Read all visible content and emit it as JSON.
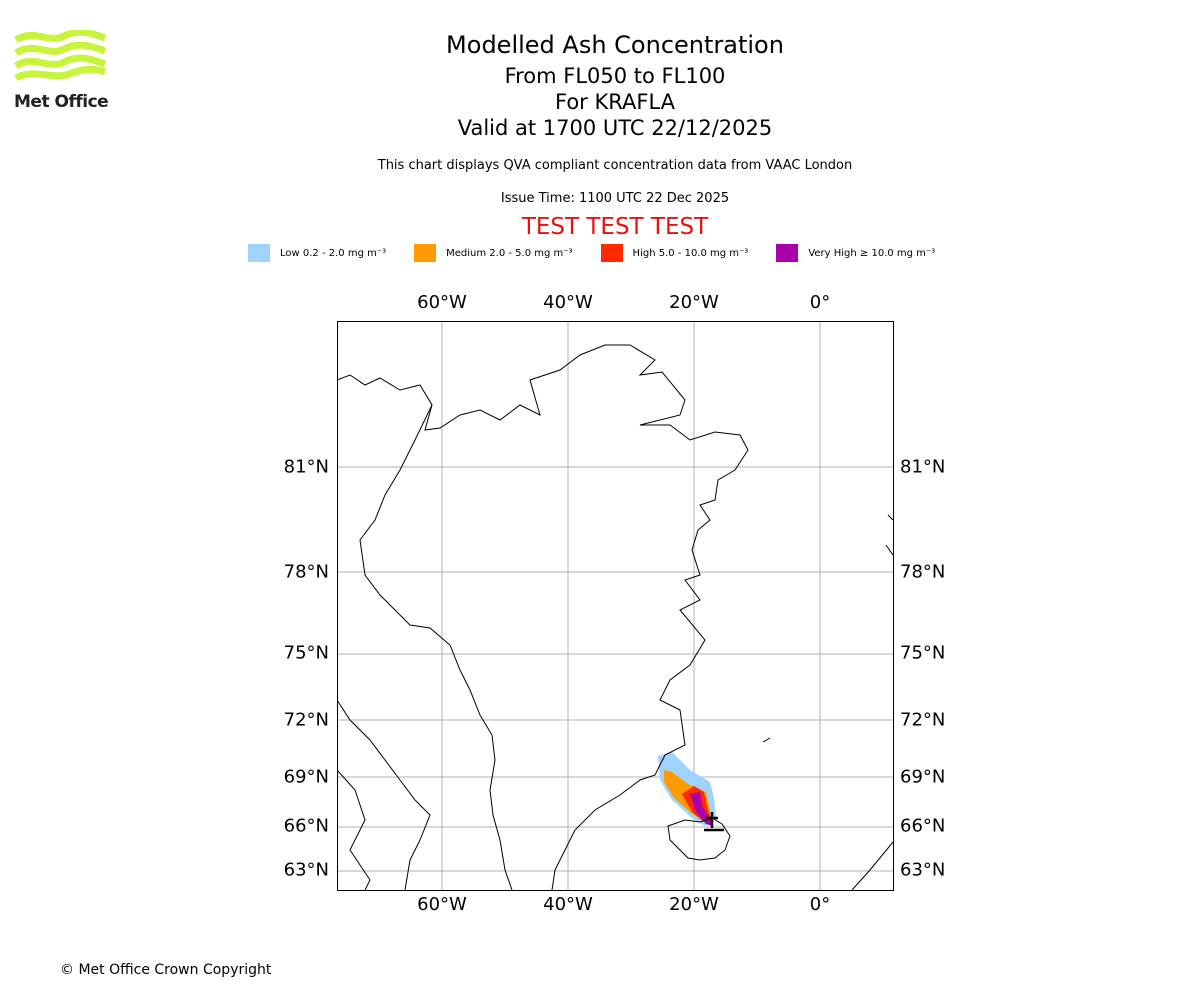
{
  "logo": {
    "text": "Met Office",
    "color": "#c8f53c"
  },
  "header": {
    "title": "Modelled Ash Concentration",
    "levels": "From FL050 to FL100",
    "volcano": "For KRAFLA",
    "valid": "Valid at 1700 UTC 22/12/2025",
    "note": "This chart displays QVA compliant concentration data from VAAC London",
    "issue": "Issue Time: 1100 UTC 22 Dec 2025",
    "test": "TEST TEST TEST"
  },
  "legend": [
    {
      "label": "Low 0.2 - 2.0 mg m⁻³",
      "color": "#a0d2ff"
    },
    {
      "label": "Medium 2.0 - 5.0 mg m⁻³",
      "color": "#ff9a00"
    },
    {
      "label": "High 5.0 - 10.0 mg m⁻³",
      "color": "#ff2a00"
    },
    {
      "label": "Very High ≥ 10.0 mg m⁻³",
      "color": "#aa00aa"
    }
  ],
  "map": {
    "lon_labels": [
      "60°W",
      "40°W",
      "20°W",
      "0°"
    ],
    "lat_labels": [
      "81°N",
      "78°N",
      "75°N",
      "72°N",
      "69°N",
      "66°N",
      "63°N"
    ]
  },
  "footer": {
    "copyright": "© Met Office Crown Copyright"
  }
}
